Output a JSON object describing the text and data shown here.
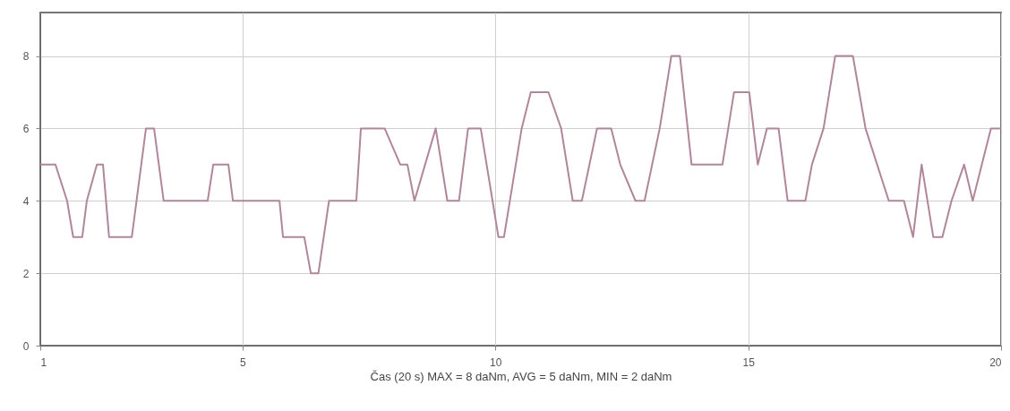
{
  "chart_data": {
    "type": "line",
    "xlabel": "Čas (20 s) MAX = 8 daNm, AVG = 5 daNm, MIN = 2 daNm",
    "x": [
      1,
      1.05,
      1.3,
      1.53,
      1.65,
      1.83,
      1.92,
      2.12,
      2.24,
      2.36,
      2.81,
      3.09,
      3.25,
      3.44,
      4.31,
      4.42,
      4.72,
      4.81,
      5.73,
      5.8,
      6.22,
      6.35,
      6.5,
      6.71,
      7.25,
      7.34,
      7.81,
      8.12,
      8.26,
      8.4,
      8.82,
      9.05,
      9.28,
      9.46,
      9.71,
      10.06,
      10.17,
      10.52,
      10.7,
      11.05,
      11.3,
      11.53,
      11.71,
      12.01,
      12.29,
      12.47,
      12.77,
      12.95,
      13.25,
      13.48,
      13.65,
      13.88,
      14.49,
      14.72,
      15.02,
      15.19,
      15.37,
      15.6,
      15.78,
      16.13,
      16.26,
      16.49,
      16.72,
      17.07,
      17.32,
      17.55,
      17.78,
      18.08,
      18.26,
      18.43,
      18.66,
      18.84,
      19.02,
      19.27,
      19.44,
      19.62,
      19.8,
      20
    ],
    "series": [
      {
        "color": "#b0879a",
        "values": [
          5,
          5,
          5,
          4,
          3,
          3,
          4,
          5,
          5,
          3,
          3,
          6,
          6,
          4,
          4,
          5,
          5,
          4,
          4,
          3,
          3,
          2,
          2,
          4,
          4,
          6,
          6,
          5,
          5,
          4,
          6,
          4,
          4,
          6,
          6,
          3,
          3,
          6,
          7,
          7,
          6,
          4,
          4,
          6,
          6,
          5,
          4,
          4,
          6,
          8,
          8,
          5,
          5,
          7,
          7,
          5,
          6,
          6,
          4,
          4,
          5,
          6,
          8,
          8,
          6,
          5,
          4,
          4,
          3,
          5,
          3,
          3,
          4,
          5,
          4,
          5,
          6,
          6
        ]
      }
    ],
    "xlim": [
      1,
      20
    ],
    "xticks": [
      1,
      5,
      10,
      15,
      20
    ],
    "ylim": [
      0,
      9.2
    ],
    "yticks": [
      0,
      2,
      4,
      6,
      8
    ],
    "grid": true
  }
}
